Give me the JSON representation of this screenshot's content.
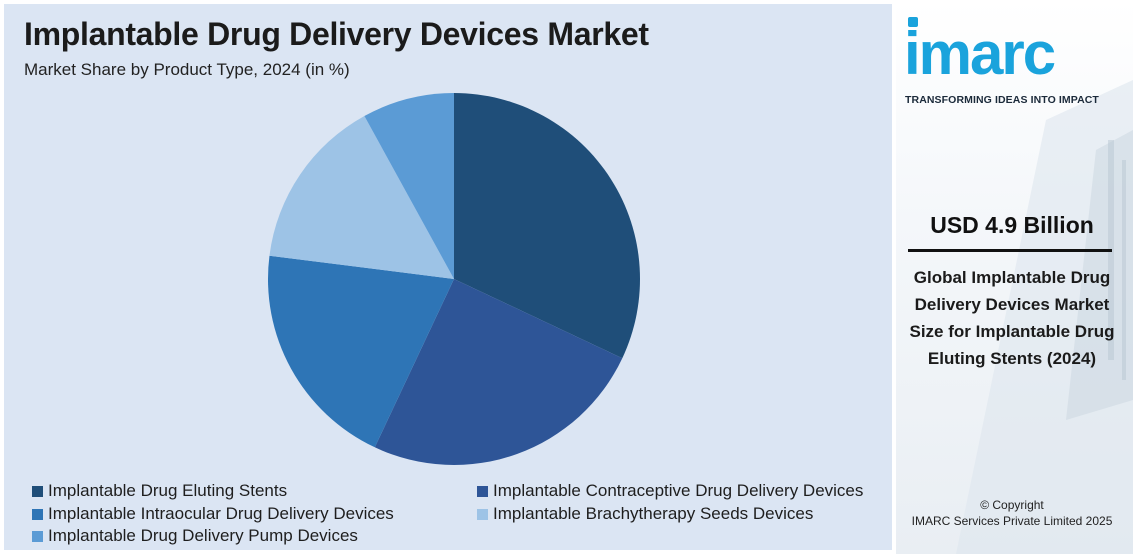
{
  "chart_data": {
    "type": "pie",
    "title": "Implantable Drug Delivery Devices Market",
    "subtitle": "Market Share by Product Type, 2024 (in %)",
    "categories": [
      "Implantable Drug Eluting Stents",
      "Implantable Contraceptive Drug Delivery Devices",
      "Implantable Intraocular Drug Delivery Devices",
      "Implantable Brachytherapy Seeds Devices",
      "Implantable Drug Delivery Pump Devices"
    ],
    "values": [
      32,
      25,
      20,
      15,
      8
    ],
    "colors": [
      "#1f4e79",
      "#2e5597",
      "#2e75b6",
      "#9dc3e6",
      "#5b9bd5"
    ],
    "legend_position": "bottom"
  },
  "sidebar": {
    "logo_text": "imarc",
    "tagline": "TRANSFORMING IDEAS INTO IMPACT",
    "market_value": "USD 4.9 Billion",
    "description": "Global Implantable Drug Delivery Devices Market Size for Implantable Drug Eluting Stents (2024)",
    "copyright_line1": "© Copyright",
    "copyright_line2": "IMARC Services Private Limited 2025",
    "brand_color": "#1aa3dc"
  }
}
